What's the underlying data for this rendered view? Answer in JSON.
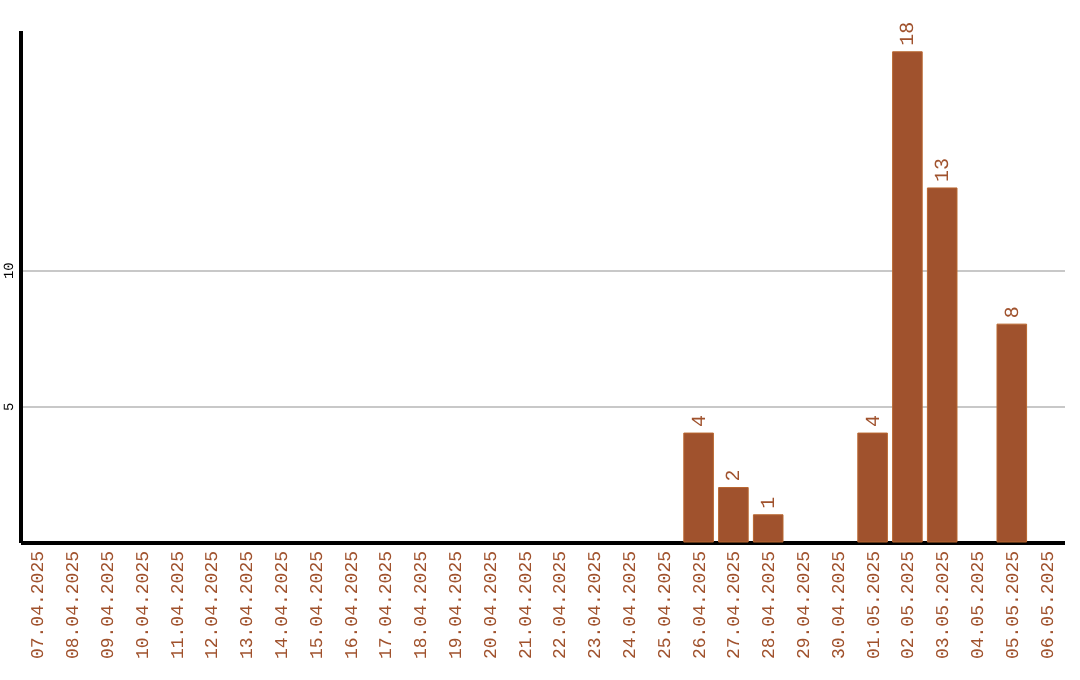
{
  "chart_data": {
    "type": "bar",
    "categories": [
      "07.04.2025",
      "08.04.2025",
      "09.04.2025",
      "10.04.2025",
      "11.04.2025",
      "12.04.2025",
      "13.04.2025",
      "14.04.2025",
      "15.04.2025",
      "16.04.2025",
      "17.04.2025",
      "18.04.2025",
      "19.04.2025",
      "20.04.2025",
      "21.04.2025",
      "22.04.2025",
      "23.04.2025",
      "24.04.2025",
      "25.04.2025",
      "26.04.2025",
      "27.04.2025",
      "28.04.2025",
      "29.04.2025",
      "30.04.2025",
      "01.05.2025",
      "02.05.2025",
      "03.05.2025",
      "04.05.2025",
      "05.05.2025",
      "06.05.2025"
    ],
    "values": [
      null,
      null,
      null,
      null,
      null,
      null,
      null,
      null,
      null,
      null,
      null,
      null,
      null,
      null,
      null,
      null,
      null,
      null,
      null,
      4,
      2,
      1,
      null,
      null,
      4,
      18,
      13,
      null,
      8,
      null
    ],
    "color": "#a0522d",
    "ylim": [
      0,
      18.8
    ],
    "yticks": [
      5,
      10
    ],
    "grid": "y",
    "data_labels": true
  }
}
